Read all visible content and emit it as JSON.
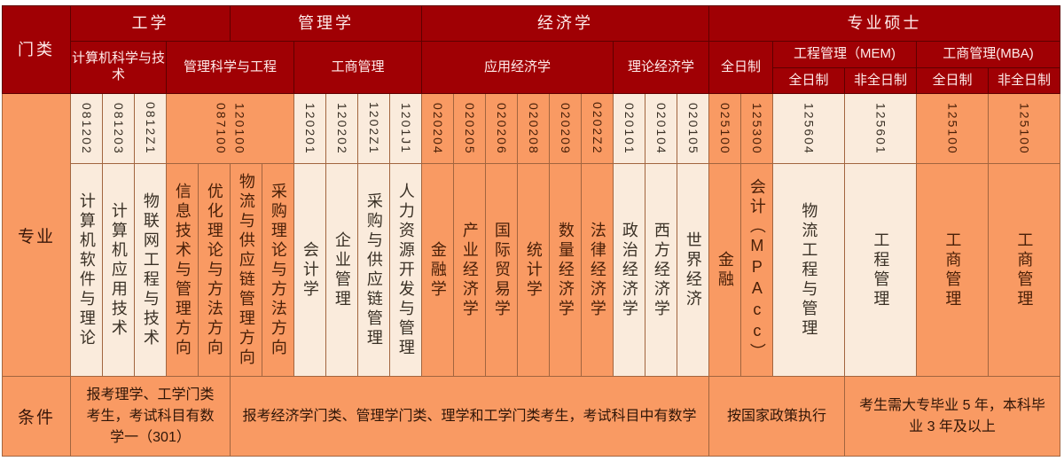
{
  "palette": {
    "header_bg": "#a00004",
    "header_text": "#ffeceb",
    "orange": "#f99a63",
    "cream": "#faebdc",
    "grid_header": "#5e0000",
    "grid_body": "#a2653f",
    "page_bg": "#ffffff"
  },
  "row_labels": {
    "category": "门类",
    "major": "专业",
    "condition": "条件"
  },
  "header": {
    "groups": [
      {
        "label": "工学",
        "span": 5
      },
      {
        "label": "管理学",
        "span": 6
      },
      {
        "label": "经济学",
        "span": 9
      },
      {
        "label": "专业硕士",
        "span": 6
      }
    ],
    "subgroups": [
      {
        "label": "计算机科学与技术",
        "span": 3,
        "rows": 2
      },
      {
        "label": "管理科学与工程",
        "span": 4,
        "rows": 2
      },
      {
        "label": "工商管理",
        "span": 4,
        "rows": 2
      },
      {
        "label": "应用经济学",
        "span": 6,
        "rows": 2
      },
      {
        "label": "理论经济学",
        "span": 3,
        "rows": 2
      },
      {
        "label": "全日制",
        "span": 2,
        "rows": 2
      },
      {
        "label": "工程管理（MEM)",
        "span": 2,
        "rows": 1
      },
      {
        "label": "工商管理(MBA)",
        "span": 2,
        "rows": 1
      }
    ],
    "modes": [
      "全日制",
      "非全日制",
      "全日制",
      "非全日制"
    ]
  },
  "codes": [
    {
      "text": "081202",
      "span": 1,
      "tone": "cream"
    },
    {
      "text": "081203",
      "span": 1,
      "tone": "cream"
    },
    {
      "text": "0812Z1",
      "span": 1,
      "tone": "cream"
    },
    {
      "text": "120100\n087100",
      "span": 4,
      "tone": "orange"
    },
    {
      "text": "120201",
      "span": 1,
      "tone": "cream"
    },
    {
      "text": "120202",
      "span": 1,
      "tone": "cream"
    },
    {
      "text": "1202Z1",
      "span": 1,
      "tone": "cream"
    },
    {
      "text": "1201J1",
      "span": 1,
      "tone": "cream"
    },
    {
      "text": "020204",
      "span": 1,
      "tone": "orange"
    },
    {
      "text": "020205",
      "span": 1,
      "tone": "orange"
    },
    {
      "text": "020206",
      "span": 1,
      "tone": "orange"
    },
    {
      "text": "020208",
      "span": 1,
      "tone": "orange"
    },
    {
      "text": "020209",
      "span": 1,
      "tone": "orange"
    },
    {
      "text": "0202Z2",
      "span": 1,
      "tone": "orange"
    },
    {
      "text": "020101",
      "span": 1,
      "tone": "cream"
    },
    {
      "text": "020104",
      "span": 1,
      "tone": "cream"
    },
    {
      "text": "020105",
      "span": 1,
      "tone": "cream"
    },
    {
      "text": "025100",
      "span": 1,
      "tone": "orange"
    },
    {
      "text": "125300",
      "span": 1,
      "tone": "orange"
    },
    {
      "text": "125604",
      "span": 1,
      "tone": "cream"
    },
    {
      "text": "125601",
      "span": 1,
      "tone": "cream"
    },
    {
      "text": "125100",
      "span": 1,
      "tone": "orange"
    },
    {
      "text": "125100",
      "span": 1,
      "tone": "orange"
    }
  ],
  "majors": [
    {
      "text": "计算机软件与理论",
      "tone": "cream"
    },
    {
      "text": "计算机应用技术",
      "tone": "cream"
    },
    {
      "text": "物联网工程与技术",
      "tone": "cream"
    },
    {
      "text": "信息技术与管理方向",
      "tone": "orange"
    },
    {
      "text": "优化理论与方法方向",
      "tone": "orange"
    },
    {
      "text": "物流与供应链管理方向",
      "tone": "orange"
    },
    {
      "text": "采购理论与方法方向",
      "tone": "orange"
    },
    {
      "text": "会计学",
      "tone": "cream"
    },
    {
      "text": "企业管理",
      "tone": "cream"
    },
    {
      "text": "采购与供应链管理",
      "tone": "cream"
    },
    {
      "text": "人力资源开发与管理",
      "tone": "cream"
    },
    {
      "text": "金融学",
      "tone": "orange"
    },
    {
      "text": "产业经济学",
      "tone": "orange"
    },
    {
      "text": "国际贸易学",
      "tone": "orange"
    },
    {
      "text": "统计学",
      "tone": "orange"
    },
    {
      "text": "数量经济学",
      "tone": "orange"
    },
    {
      "text": "法律经济学",
      "tone": "orange"
    },
    {
      "text": "政治经济学",
      "tone": "cream"
    },
    {
      "text": "西方经济学",
      "tone": "cream"
    },
    {
      "text": "世界经济",
      "tone": "cream"
    },
    {
      "text": "金融",
      "tone": "orange"
    },
    {
      "text": "会计（MPAcc）",
      "tone": "orange"
    },
    {
      "text": "物流工程与管理",
      "tone": "cream",
      "wide": true
    },
    {
      "text": "工程管理",
      "tone": "cream",
      "wide": true
    },
    {
      "text": "工商管理",
      "tone": "orange",
      "wide": true
    },
    {
      "text": "工商管理",
      "tone": "orange",
      "wide": true
    }
  ],
  "conditions": [
    {
      "text": "报考理学、工学门类考生，考试科目有数学一（301）",
      "span": 5
    },
    {
      "text": "报考经济学门类、管理学门类、理学和工学门类考生，考试科目中有数学",
      "span": 15
    },
    {
      "text": "按国家政策执行",
      "span": 3
    },
    {
      "text": "考生需大专毕业 5 年，本科毕业 3 年及以上",
      "span": 3
    }
  ]
}
